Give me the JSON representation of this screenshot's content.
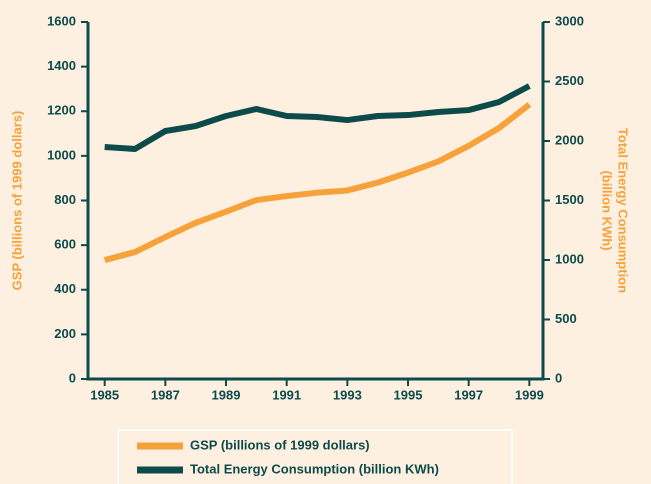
{
  "chart_data": {
    "type": "line",
    "ylabel": "GSP (billions of 1999 dollars)",
    "y2label": [
      "Total Energy Consumption",
      "(billion KWh)"
    ],
    "x": [
      1985,
      1986,
      1987,
      1988,
      1989,
      1990,
      1991,
      1992,
      1993,
      1994,
      1995,
      1996,
      1997,
      1998,
      1999
    ],
    "xlim": [
      1984.45,
      1999.45
    ],
    "xticks": [
      1985,
      1987,
      1989,
      1991,
      1993,
      1995,
      1997,
      1999
    ],
    "ylim": [
      0,
      1600
    ],
    "yticks": [
      0,
      200,
      400,
      600,
      800,
      1000,
      1200,
      1400,
      1600
    ],
    "y2lim": [
      0,
      3000
    ],
    "y2ticks": [
      0,
      500,
      1000,
      1500,
      2000,
      2500,
      3000
    ],
    "legend": "bottom",
    "series": [
      {
        "name": "GSP (billions of 1999 dollars)",
        "color": "#f7a13a",
        "values": [
          533,
          569,
          636,
          700,
          750,
          802,
          820,
          835,
          845,
          880,
          925,
          975,
          1045,
          1125,
          1230
        ]
      },
      {
        "name": "Total Energy Consumption (billion KWh)",
        "color": "#0d4b4b",
        "axis": "y2",
        "values": [
          1950,
          1933,
          2084,
          2126,
          2210,
          2269,
          2210,
          2202,
          2176,
          2210,
          2218,
          2244,
          2260,
          2328,
          2462
        ]
      }
    ]
  }
}
